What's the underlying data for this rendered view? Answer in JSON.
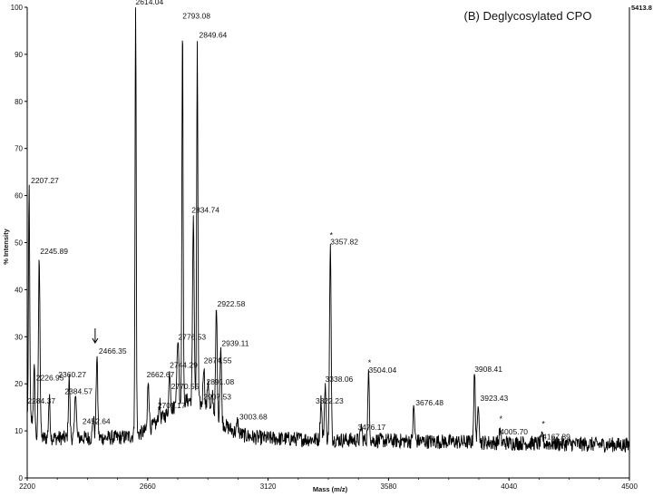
{
  "chart_data": {
    "type": "line",
    "title": "(B)  Deglycosylated CPO",
    "xlabel": "Mass (m/z)",
    "ylabel": "% Intensity",
    "max_intensity_label": "5413.8",
    "xlim": [
      2200,
      4500
    ],
    "ylim": [
      0,
      100
    ],
    "x_ticks": [
      "2200",
      "2660",
      "3120",
      "3580",
      "4040",
      "4500"
    ],
    "y_ticks": [
      "0",
      "10",
      "20",
      "30",
      "40",
      "50",
      "60",
      "70",
      "80",
      "90",
      "100"
    ],
    "grid": false,
    "peaks": [
      {
        "x": 2207.27,
        "y": 62,
        "label": "2207.27"
      },
      {
        "x": 2226.95,
        "y": 23,
        "label": "2226.95"
      },
      {
        "x": 2245.89,
        "y": 47,
        "label": "2245.89"
      },
      {
        "x": 2284.37,
        "y": 17,
        "label": "2284.37"
      },
      {
        "x": 2360.27,
        "y": 21,
        "label": "2360.27"
      },
      {
        "x": 2384.57,
        "y": 19,
        "label": "2384.57"
      },
      {
        "x": 2452.64,
        "y": 13,
        "label": "2452.64"
      },
      {
        "x": 2466.35,
        "y": 26,
        "label": "2466.35"
      },
      {
        "x": 2614.04,
        "y": 100,
        "label": "2614.04"
      },
      {
        "x": 2662.67,
        "y": 21,
        "label": "2662.67"
      },
      {
        "x": 2705.17,
        "y": 16,
        "label": "2705.17"
      },
      {
        "x": 2744.29,
        "y": 23,
        "label": "2744.29"
      },
      {
        "x": 2770.55,
        "y": 20,
        "label": "2770.55"
      },
      {
        "x": 2776.53,
        "y": 29,
        "label": "2776.53"
      },
      {
        "x": 2793.08,
        "y": 97,
        "label": "2793.08"
      },
      {
        "x": 2834.74,
        "y": 56,
        "label": "2834.74"
      },
      {
        "x": 2849.64,
        "y": 93,
        "label": "2849.64"
      },
      {
        "x": 2874.55,
        "y": 24,
        "label": "2874.55"
      },
      {
        "x": 2891.08,
        "y": 21,
        "label": "2891.08"
      },
      {
        "x": 2907.53,
        "y": 18,
        "label": "2907.53"
      },
      {
        "x": 2922.58,
        "y": 36,
        "label": "2922.58"
      },
      {
        "x": 2939.11,
        "y": 28,
        "label": "2939.11"
      },
      {
        "x": 3003.68,
        "y": 12,
        "label": "3003.68"
      },
      {
        "x": 3322.23,
        "y": 17,
        "label": "3322.23"
      },
      {
        "x": 3338.06,
        "y": 20,
        "label": "3338.06"
      },
      {
        "x": 3357.82,
        "y": 49,
        "label": "3357.82"
      },
      {
        "x": 3476.17,
        "y": 11,
        "label": "3476.17"
      },
      {
        "x": 3504.04,
        "y": 22,
        "label": "3504.04"
      },
      {
        "x": 3676.48,
        "y": 15,
        "label": "3676.48"
      },
      {
        "x": 3908.41,
        "y": 22,
        "label": "3908.41"
      },
      {
        "x": 3923.43,
        "y": 16,
        "label": "3923.43"
      },
      {
        "x": 4005.7,
        "y": 10,
        "label": "4005.70"
      },
      {
        "x": 4167.89,
        "y": 9,
        "label": "4167.89"
      }
    ],
    "asterisk_peaks": [
      3357.82,
      3504.04,
      4005.7,
      4167.89
    ],
    "arrow_peak": 2466.35
  }
}
